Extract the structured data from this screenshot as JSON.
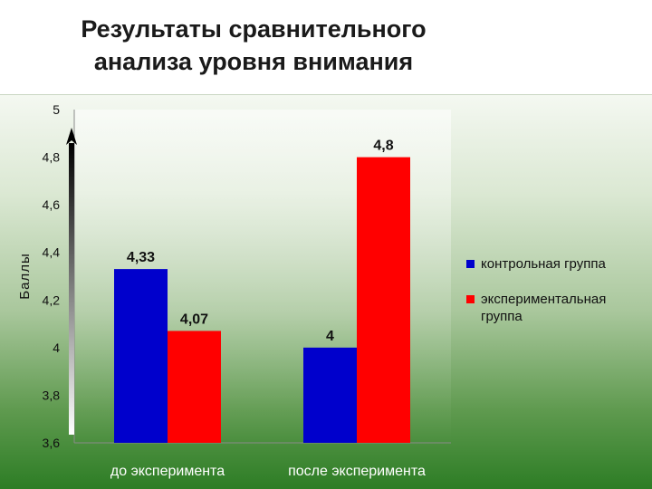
{
  "slide": {
    "title_line1": "Результаты сравнительного",
    "title_line2": "анализа уровня внимания"
  },
  "chart_data": {
    "type": "bar",
    "categories": [
      "до эксперимента",
      "после эксперимента"
    ],
    "series": [
      {
        "name": "контрольная группа",
        "values": [
          4.33,
          4
        ],
        "labels": [
          "4,33",
          "4"
        ],
        "color": "#0000cc"
      },
      {
        "name": "экспериментальная группа",
        "values": [
          4.07,
          4.8
        ],
        "labels": [
          "4,07",
          "4,8"
        ],
        "color": "#ff0000"
      }
    ],
    "ylabel": "Баллы",
    "xlabel": "",
    "ylim": [
      3.6,
      5
    ],
    "yticks": [
      3.6,
      3.8,
      4,
      4.2,
      4.4,
      4.6,
      4.8,
      5
    ],
    "ytick_labels": [
      "3,6",
      "3,8",
      "4",
      "4,2",
      "4,4",
      "4,6",
      "4,8",
      "5"
    ],
    "legend_position": "right",
    "grid": false
  }
}
